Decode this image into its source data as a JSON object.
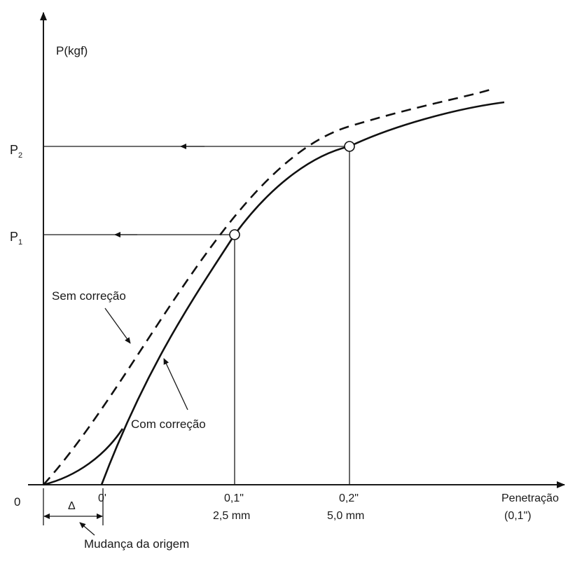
{
  "chart_data": {
    "type": "line",
    "title": "",
    "ylabel": "P(kgf)",
    "xlabel_line1": "Penetração",
    "xlabel_line2": "(0,1\")",
    "origin_label": "0",
    "shifted_origin_label": "0'",
    "delta_label": "Δ",
    "origin_shift_label": "Mudança da origem",
    "x_ticks": [
      {
        "x": 0.1,
        "line1": "0,1\"",
        "line2": "2,5 mm"
      },
      {
        "x": 0.2,
        "line1": "0,2\"",
        "line2": "5,0 mm"
      }
    ],
    "y_ticks": [
      {
        "label": "P",
        "sub": "1"
      },
      {
        "label": "P",
        "sub": "2"
      }
    ],
    "series": [
      {
        "name": "Sem correção",
        "style": "dashed"
      },
      {
        "name": "Com correção",
        "style": "solid"
      }
    ],
    "markers": [
      {
        "x": 0.1,
        "y_label": "P1"
      },
      {
        "x": 0.2,
        "y_label": "P2"
      }
    ],
    "grid": false,
    "colors": {
      "ink": "#111111",
      "background": "#ffffff"
    }
  }
}
